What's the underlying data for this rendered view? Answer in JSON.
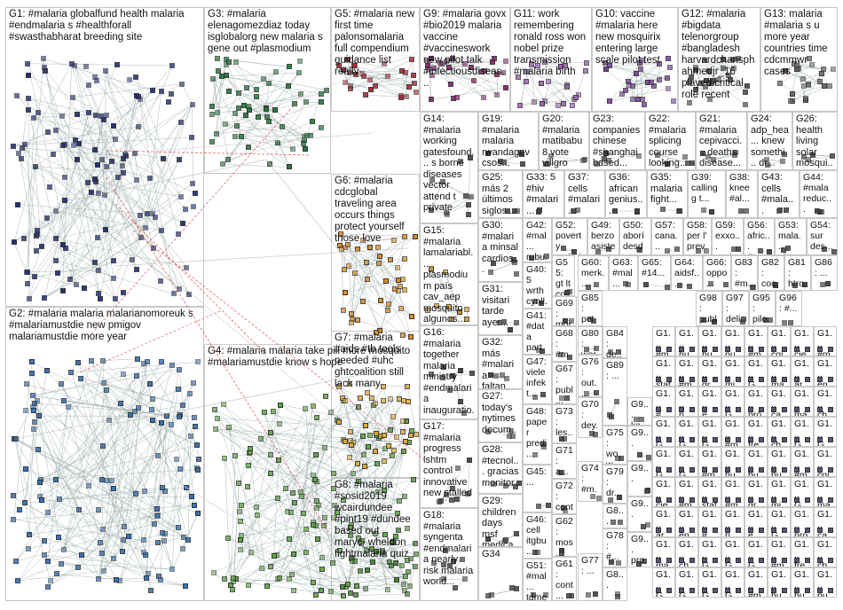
{
  "graph": {
    "groups": [
      {
        "id": "G1",
        "text": "G1: #malaria globalfund health malaria #endmalaria s #healthforall #swasthabharat breeding site",
        "color": "#1f2f7a"
      },
      {
        "id": "G2",
        "text": "G2: #malaria malaria malarianomoreuk s #malariamustdie new pmigov malariamustdie more year",
        "color": "#2f6fb8"
      },
      {
        "id": "G3",
        "text": "G3: #malaria elenagomezdiaz today isglobalorg new malaria s gene out #plasmodium",
        "color": "#1d7a3a"
      },
      {
        "id": "G4",
        "text": "G4: #malaria malaria take pill more mosquito #malariamustdie know s hope",
        "color": "#5aa83c"
      },
      {
        "id": "G5",
        "text": "G5: #malaria new first time palonsomalaria full compendium guidance list really",
        "color": "#b3202a"
      },
      {
        "id": "G6",
        "text": "G6: #malaria cdcglobal traveling area occurs things protect yourself those love",
        "color": "#e08a1e"
      },
      {
        "id": "G7",
        "text": "G7: #malaria #aids #tb tools needed #uhc ghtcoalition still lack many",
        "color": "#e6a82a"
      },
      {
        "id": "G8",
        "text": "G8: #malaria #sosid2019 wcairdundee #pint19 #dundee based out maryc_wheldon fightmalaria quiz",
        "color": "#3d8a2a"
      },
      {
        "id": "G9",
        "text": "G9: #malaria govx #bio2019 malaria vaccine #vaccineswork new pilot talk #infectiousdiseas...",
        "color": "#8a1f6e"
      },
      {
        "id": "G10",
        "text": "G10: vaccine #malaria here new mosquirix entering large scale pilot test",
        "color": "#7a3fa0"
      },
      {
        "id": "G11",
        "text": "G11: work remembering ronald ross won nobel prize transmission #malaria birth",
        "color": "#a05ab8"
      },
      {
        "id": "G12",
        "text": "G12: #malaria #bigdata telenorgroup #bangladesh harvardchansph ahmedjr_16 played critical role recent",
        "color": "#444"
      },
      {
        "id": "G13",
        "text": "G13: malaria #malaria s u more year countries time cdcmmwr cases",
        "color": "#666"
      },
      {
        "id": "G14",
        "text": "G14: #malaria working gatesfound... s borne diseases vector attend t private",
        "color": "#444"
      },
      {
        "id": "G15",
        "text": "G15: #malaria lamalariabl... plasmodium país cav_aep mosquito algunos...",
        "color": "#d9941e"
      },
      {
        "id": "G16",
        "text": "G16: #malaria together malaria ministry #endmalaria inauguratio...",
        "color": "#444"
      },
      {
        "id": "G17",
        "text": "G17: #malaria progress lshtm control innovative new stalled",
        "color": "#444"
      },
      {
        "id": "G18",
        "text": "G18: #malaria syngenta #endmalaria nearly risk malaria world...",
        "color": "#444"
      },
      {
        "id": "G19",
        "text": "G19: #malaria malaria rwandagov csos...",
        "color": "#444"
      },
      {
        "id": "G20",
        "text": "G20: #malaria matibabu8 vote villgro kenya...",
        "color": "#444"
      },
      {
        "id": "G21",
        "text": "G21: #malaria cepivacci... deaths disease... dr...",
        "color": "#444"
      },
      {
        "id": "G22",
        "text": "G22: #malaria splicing course looking...",
        "color": "#444"
      },
      {
        "id": "G23",
        "text": "G23: companies chinese #shanghai based...",
        "color": "#444"
      },
      {
        "id": "G24",
        "text": "G24: adp_hea... knew somethi... dr...",
        "color": "#444"
      },
      {
        "id": "G25",
        "text": "G25: más 2 últimos siglos...",
        "color": "#444"
      },
      {
        "id": "G26",
        "text": "G26: health living solar mosqui...",
        "color": "#444"
      },
      {
        "id": "G27",
        "text": "G27: today's nytimes docum...",
        "color": "#444"
      },
      {
        "id": "G28",
        "text": "G28: #tecnol... gracias monitor...",
        "color": "#444"
      },
      {
        "id": "G29",
        "text": "G29: children days msf medica...",
        "color": "#444"
      },
      {
        "id": "G30",
        "text": "G30: #malaria minsal cardios...",
        "color": "#444"
      },
      {
        "id": "G31",
        "text": "G31: visitari tarde ayer...",
        "color": "#444"
      },
      {
        "id": "G32",
        "text": "G32: más #malaria faltan...",
        "color": "#444"
      },
      {
        "id": "G33",
        "text": "G33: 5 #hiv #malari...",
        "color": "#444"
      },
      {
        "id": "G34",
        "text": "G34",
        "color": "#444"
      },
      {
        "id": "G35",
        "text": "G35: malaria fight...",
        "color": "#444"
      },
      {
        "id": "G36",
        "text": "G36: african genius...",
        "color": "#444"
      },
      {
        "id": "G37",
        "text": "G37: cells #malari...",
        "color": "#444"
      },
      {
        "id": "G38",
        "text": "G38: knee #al...",
        "color": "#444"
      },
      {
        "id": "G39",
        "text": "G39: calling g t...",
        "color": "#444"
      },
      {
        "id": "G40",
        "text": "G40: 5 wrth cynll...",
        "color": "#444"
      },
      {
        "id": "G41",
        "text": "G41: #data part #mal...",
        "color": "#444"
      },
      {
        "id": "G42",
        "text": "G42: #mal... rubu... toda...",
        "color": "#444"
      },
      {
        "id": "G43",
        "text": "G43: cells #mala...",
        "color": "#444"
      },
      {
        "id": "G44",
        "text": "G44: #mala reduc...",
        "color": "#444"
      },
      {
        "id": "G45",
        "text": "G45: ...",
        "color": "#444"
      },
      {
        "id": "G46",
        "text": "G46: cell itgbu...",
        "color": "#444"
      },
      {
        "id": "G47",
        "text": "G47: viele infekt...",
        "color": "#444"
      },
      {
        "id": "G48",
        "text": "G48: paper predi...",
        "color": "#444"
      },
      {
        "id": "G49",
        "text": "G49: berzo asiste...",
        "color": "#444"
      },
      {
        "id": "G50",
        "text": "G50: aborí desde...",
        "color": "#444"
      },
      {
        "id": "G51",
        "text": "G51: #mal... tdme...",
        "color": "#444"
      },
      {
        "id": "G52",
        "text": "G52: poverty malari...",
        "color": "#444"
      },
      {
        "id": "G53",
        "text": "G53: mala... plea...",
        "color": "#444"
      },
      {
        "id": "G54",
        "text": "G54: sur des...",
        "color": "#444"
      },
      {
        "id": "G55",
        "text": "G55: gt lt co...",
        "color": "#444"
      },
      {
        "id": "G56",
        "text": "G56: afric... #ma...",
        "color": "#444"
      },
      {
        "id": "G57",
        "text": "G57: cana... nece...",
        "color": "#444"
      },
      {
        "id": "G58",
        "text": "G58: per l' prev...",
        "color": "#444"
      },
      {
        "id": "G59",
        "text": "G59: exxo... soci...",
        "color": "#444"
      },
      {
        "id": "G60",
        "text": "G60: merk...",
        "color": "#444"
      },
      {
        "id": "G61",
        "text": "G61: cont...",
        "color": "#444"
      },
      {
        "id": "G62",
        "text": "G62: mos...",
        "color": "#444"
      },
      {
        "id": "G63",
        "text": "G63: #mal...",
        "color": "#444"
      },
      {
        "id": "G64",
        "text": "G64: aidsf...",
        "color": "#444"
      },
      {
        "id": "G65",
        "text": "G65: #14...",
        "color": "#444"
      },
      {
        "id": "G66",
        "text": "G66: oppo...",
        "color": "#444"
      },
      {
        "id": "G67",
        "text": "G67: publ...",
        "color": "#444"
      },
      {
        "id": "G68",
        "text": "G68: #ma...",
        "color": "#444"
      },
      {
        "id": "G69",
        "text": "G69: mor...",
        "color": "#444"
      },
      {
        "id": "G70",
        "text": "G70: dey...",
        "color": "#444"
      },
      {
        "id": "G71",
        "text": "G71: a...",
        "color": "#444"
      },
      {
        "id": "G72",
        "text": "G72: cont...",
        "color": "#444"
      },
      {
        "id": "G73",
        "text": "G73: les...",
        "color": "#444"
      },
      {
        "id": "G74",
        "text": "G74: #m...",
        "color": "#444"
      },
      {
        "id": "G75",
        "text": "G75: wow...",
        "color": "#444"
      },
      {
        "id": "G76",
        "text": "G76: out...",
        "color": "#444"
      },
      {
        "id": "G77",
        "text": "G77: ...",
        "color": "#444"
      },
      {
        "id": "G78",
        "text": "G78: #...",
        "color": "#444"
      },
      {
        "id": "G79",
        "text": "G79: dr...",
        "color": "#444"
      },
      {
        "id": "G80",
        "text": "G80: wor...",
        "color": "#444"
      },
      {
        "id": "G81",
        "text": "G81: htro...",
        "color": "#444"
      },
      {
        "id": "G82",
        "text": "G82: coc...",
        "color": "#444"
      },
      {
        "id": "G83",
        "text": "G83: #m...",
        "color": "#444"
      },
      {
        "id": "G84",
        "text": "G84: de...",
        "color": "#444"
      },
      {
        "id": "G85",
        "text": "G85: pet he...",
        "color": "#444"
      },
      {
        "id": "G86",
        "text": "G86: ...",
        "color": "#444"
      },
      {
        "id": "G87",
        "text": "G8...",
        "color": "#444"
      },
      {
        "id": "G88",
        "text": "G8...",
        "color": "#444"
      },
      {
        "id": "G89",
        "text": "G89: ...",
        "color": "#444"
      },
      {
        "id": "G90",
        "text": "G9... ka...",
        "color": "#444"
      },
      {
        "id": "G91",
        "text": "G9...",
        "color": "#444"
      },
      {
        "id": "G92",
        "text": "G9...",
        "color": "#444"
      },
      {
        "id": "G93",
        "text": "G9...",
        "color": "#444"
      },
      {
        "id": "G94",
        "text": "G9... pro...",
        "color": "#444"
      },
      {
        "id": "G95",
        "text": "G95: pilo...",
        "color": "#444"
      },
      {
        "id": "G96",
        "text": "G96: #...",
        "color": "#444"
      },
      {
        "id": "G97",
        "text": "G97: deli...",
        "color": "#444"
      },
      {
        "id": "G98",
        "text": "G98: publ...",
        "color": "#444"
      }
    ],
    "small_cells": [
      "G1... #mal...",
      "G1... hu...",
      "G1... bu...",
      "G1... pu...",
      "G1... #m...",
      "G1... cgi...",
      "G1... cie...",
      "G1... #mal...",
      "G1... stat...",
      "G1... #m...",
      "G1... gr...",
      "G1... mi...",
      "G1... G...",
      "G1... ma...",
      "G1... ar...",
      "G1... en...",
      "G1... #...",
      "G1... p...",
      "G1... e...",
      "G1... G...",
      "G1... pró...",
      "G1... ca...",
      "G1... ma...",
      "G1... ch...",
      "G1... G...",
      "G1... G...",
      "G1... G...",
      "G1... #m...",
      "G1... fre...",
      "G1... ch...",
      "G1... G...",
      "G1... G...",
      "G1... G...",
      "G1... G..."
    ]
  }
}
